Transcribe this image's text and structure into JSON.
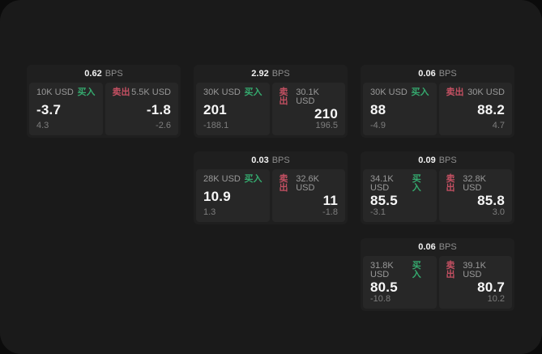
{
  "labels": {
    "buy": "买入",
    "sell": "卖出",
    "bps_unit": "BPS"
  },
  "colors": {
    "buy_green": "#35a96e",
    "sell_red": "#c45062",
    "panel_background": "#1a1a1a",
    "card_background": "#1f1f1f",
    "cell_background": "#272727"
  },
  "cards": [
    {
      "bps": "0.62",
      "buy": {
        "amount": "10K USD",
        "value": "-3.7",
        "change": "4.3"
      },
      "sell": {
        "amount": "5.5K USD",
        "value": "-1.8",
        "change": "-2.6"
      }
    },
    {
      "bps": "2.92",
      "buy": {
        "amount": "30K USD",
        "value": "201",
        "change": "-188.1"
      },
      "sell": {
        "amount": "30.1K USD",
        "value": "210",
        "change": "196.5"
      }
    },
    {
      "bps": "0.06",
      "buy": {
        "amount": "30K USD",
        "value": "88",
        "change": "-4.9"
      },
      "sell": {
        "amount": "30K USD",
        "value": "88.2",
        "change": "4.7"
      }
    },
    {
      "bps": "0.03",
      "buy": {
        "amount": "28K USD",
        "value": "10.9",
        "change": "1.3"
      },
      "sell": {
        "amount": "32.6K USD",
        "value": "11",
        "change": "-1.8"
      }
    },
    {
      "bps": "0.09",
      "buy": {
        "amount": "34.1K USD",
        "value": "85.5",
        "change": "-3.1"
      },
      "sell": {
        "amount": "32.8K USD",
        "value": "85.8",
        "change": "3.0"
      }
    },
    {
      "bps": "0.06",
      "buy": {
        "amount": "31.8K USD",
        "value": "80.5",
        "change": "-10.8"
      },
      "sell": {
        "amount": "39.1K USD",
        "value": "80.7",
        "change": "10.2"
      }
    }
  ]
}
